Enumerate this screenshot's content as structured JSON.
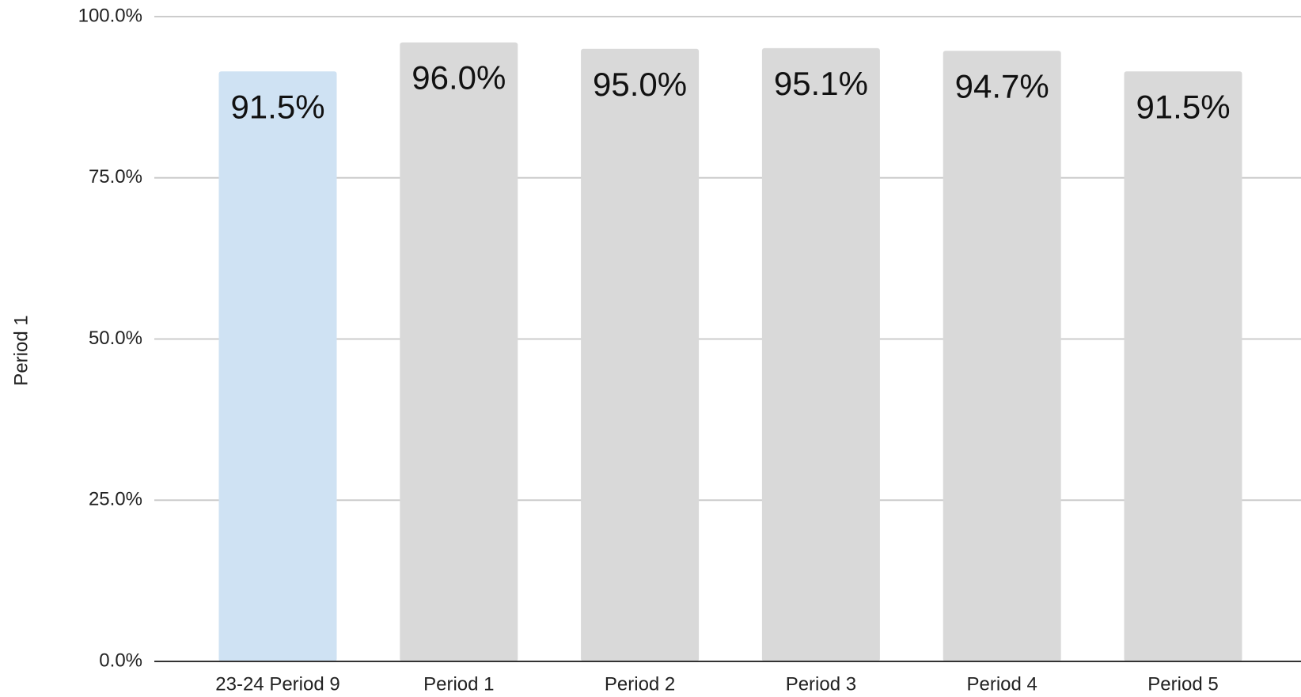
{
  "chart_data": {
    "type": "bar",
    "y_label": "Period 1",
    "categories": [
      "23-24 Period 9",
      "Period 1",
      "Period 2",
      "Period 3",
      "Period 4",
      "Period 5"
    ],
    "values": [
      91.5,
      96.0,
      95.0,
      95.1,
      94.7,
      91.5
    ],
    "value_labels": [
      "91.5%",
      "96.0%",
      "95.0%",
      "95.1%",
      "94.7%",
      "91.5%"
    ],
    "colors": [
      "#cfe2f3",
      "#d9d9d9",
      "#d9d9d9",
      "#d9d9d9",
      "#d9d9d9",
      "#d9d9d9"
    ],
    "ylim": [
      0,
      100
    ],
    "yticks": [
      {
        "value": 0,
        "label": "0.0%"
      },
      {
        "value": 25,
        "label": "25.0%"
      },
      {
        "value": 50,
        "label": "50.0%"
      },
      {
        "value": 75,
        "label": "75.0%"
      },
      {
        "value": 100,
        "label": "100.0%"
      }
    ],
    "grid": true
  }
}
